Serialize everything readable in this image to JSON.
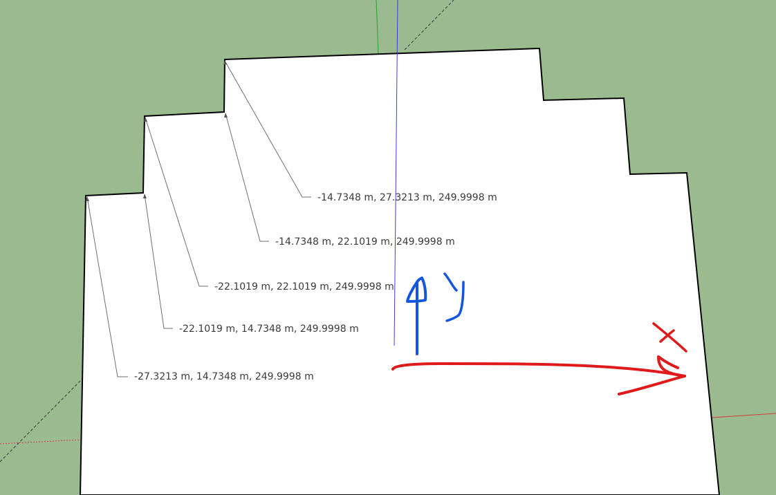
{
  "scene": {
    "background_color": "#9aba8f",
    "face_color": "#ffffff",
    "edge_color": "#000000",
    "leader_color": "#6e6e6e",
    "axes": {
      "blue_axis_color": "#3b3bd6",
      "green_axis_color": "#2aa32a",
      "red_axis_color": "#d23b3b"
    },
    "sketch_annotations": {
      "y_label": "y",
      "x_label": "x",
      "y_arrow_color": "#1455e0",
      "x_arrow_color": "#e01a1a"
    }
  },
  "labels": [
    {
      "text": "-14.7348 m, 27.3213 m, 249.9998 m"
    },
    {
      "text": "-14.7348 m, 22.1019 m, 249.9998 m"
    },
    {
      "text": "-22.1019 m, 22.1019 m, 249.9998 m"
    },
    {
      "text": "-22.1019 m, 14.7348 m, 249.9998 m"
    },
    {
      "text": "-27.3213 m, 14.7348 m, 249.9998 m"
    }
  ]
}
